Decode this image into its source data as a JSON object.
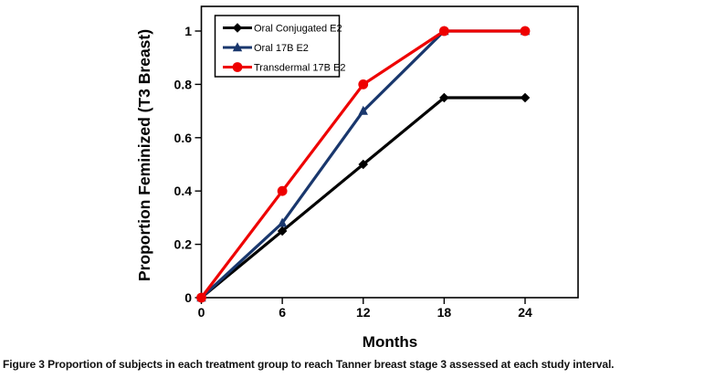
{
  "figure": {
    "caption_label": "Figure 3",
    "caption_text": "Proportion of subjects in each treatment group to reach Tanner breast stage 3 assessed at each study interval."
  },
  "chart_data": {
    "type": "line",
    "title": "",
    "xlabel": "Months",
    "ylabel": "Proportion Feminized (T3 Breast)",
    "x": [
      0,
      6,
      12,
      18,
      24
    ],
    "x_tick_labels": [
      "0",
      "6",
      "12",
      "18",
      "24"
    ],
    "y_tick_values": [
      0,
      0.2,
      0.4,
      0.6,
      0.8,
      1
    ],
    "y_tick_labels": [
      "0",
      "0.2",
      "0.4",
      "0.6",
      "0.8",
      "1"
    ],
    "xlim": [
      0,
      28
    ],
    "ylim": [
      0,
      1.09
    ],
    "grid": false,
    "legend_position": "top-left-inside",
    "frame_color": "#000000",
    "background_color": "#ffffff",
    "series": [
      {
        "name": "Oral Conjugated E2",
        "color": "#000000",
        "marker": "diamond",
        "values": [
          0,
          0.25,
          0.5,
          0.75,
          0.75
        ]
      },
      {
        "name": "Oral 17B E2",
        "color": "#19376D",
        "marker": "triangle",
        "values": [
          0,
          0.28,
          0.7,
          1,
          1
        ]
      },
      {
        "name": "Transdermal 17B E2",
        "color": "#EE0000",
        "marker": "circle",
        "values": [
          0,
          0.4,
          0.8,
          1,
          1
        ]
      }
    ]
  }
}
